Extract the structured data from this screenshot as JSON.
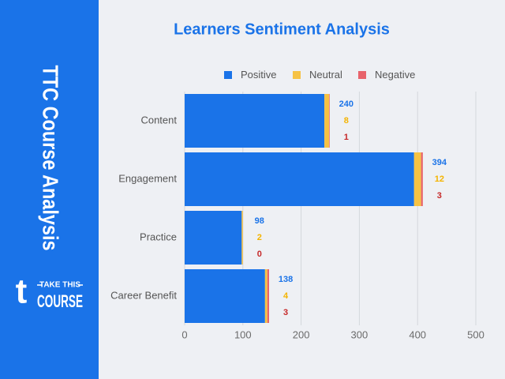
{
  "brand": {
    "side_title": "TTC Course Analysis",
    "logo_mark": "t",
    "logo_top": "TAKE THIS",
    "logo_bottom": "COURSE"
  },
  "chart_data": {
    "type": "bar",
    "orientation": "horizontal",
    "stacked": true,
    "title": "Learners Sentiment Analysis",
    "categories": [
      "Content",
      "Engagement",
      "Practice",
      "Career Benefit"
    ],
    "series": [
      {
        "name": "Positive",
        "color": "#1a73e8",
        "label_color": "#1a73e8",
        "values": [
          240,
          394,
          98,
          138
        ]
      },
      {
        "name": "Neutral",
        "color": "#f6c244",
        "label_color": "#f4b400",
        "values": [
          8,
          12,
          2,
          4
        ]
      },
      {
        "name": "Negative",
        "color": "#e8636b",
        "label_color": "#c62828",
        "values": [
          1,
          3,
          0,
          3
        ]
      }
    ],
    "xlim": [
      0,
      500
    ],
    "xticks": [
      0,
      100,
      200,
      300,
      400,
      500
    ],
    "grid": true,
    "legend": "top"
  }
}
